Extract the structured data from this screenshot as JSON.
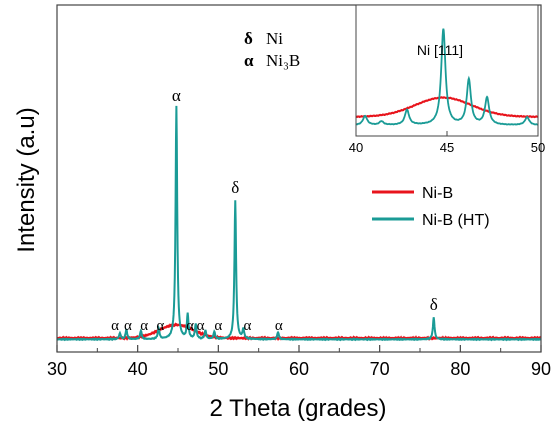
{
  "chart_data": [
    {
      "type": "line",
      "xlabel": "2 Theta (grades)",
      "ylabel": "Intensity (a.u)",
      "xlim": [
        30,
        90
      ],
      "ylim": [
        0,
        1.05
      ],
      "x_ticks": [
        "30",
        "40",
        "50",
        "60",
        "70",
        "80",
        "90"
      ],
      "legend_position": "center-right",
      "phase_key": [
        {
          "symbol": "δ",
          "label": "Ni"
        },
        {
          "symbol": "α",
          "label": "Ni₃B"
        }
      ],
      "series": [
        {
          "name": "Ni-B",
          "color": "#e8141c",
          "baseline": 0.02,
          "broad_peak": {
            "center": 44.8,
            "height": 0.055,
            "width": 3.0
          }
        },
        {
          "name": "Ni-B (HT)",
          "color": "#1a9b96",
          "baseline": 0.015,
          "peaks": [
            {
              "x": 37.8,
              "y": 0.025
            },
            {
              "x": 38.6,
              "y": 0.04
            },
            {
              "x": 40.4,
              "y": 0.035
            },
            {
              "x": 42.6,
              "y": 0.045
            },
            {
              "x": 44.8,
              "y": 0.96
            },
            {
              "x": 46.2,
              "y": 0.1
            },
            {
              "x": 47.2,
              "y": 0.06
            },
            {
              "x": 48.4,
              "y": 0.035
            },
            {
              "x": 49.5,
              "y": 0.03
            },
            {
              "x": 52.1,
              "y": 0.57
            },
            {
              "x": 53.1,
              "y": 0.04
            },
            {
              "x": 57.4,
              "y": 0.03
            },
            {
              "x": 76.7,
              "y": 0.09
            }
          ]
        }
      ],
      "annotations": [
        {
          "text": "α",
          "x": 44.8
        },
        {
          "text": "δ",
          "x": 52.1
        },
        {
          "text": "δ",
          "x": 76.7
        },
        {
          "text": "α",
          "x": 37.2
        },
        {
          "text": "α",
          "x": 38.8
        },
        {
          "text": "α",
          "x": 40.8
        },
        {
          "text": "α",
          "x": 42.8
        },
        {
          "text": "α",
          "x": 46.5
        },
        {
          "text": "α",
          "x": 47.8
        },
        {
          "text": "α",
          "x": 50.0
        },
        {
          "text": "α",
          "x": 53.6
        },
        {
          "text": "α",
          "x": 57.5
        }
      ]
    },
    {
      "type": "line",
      "title": "Ni [111]",
      "xlim": [
        40,
        50
      ],
      "x_ticks": [
        "40",
        "45",
        "50"
      ],
      "series": [
        {
          "name": "Ni-B",
          "color": "#e8141c",
          "broad_peak": {
            "center": 44.8,
            "height": 0.32,
            "width": 2.2
          },
          "baseline": 0.22
        },
        {
          "name": "Ni-B (HT)",
          "color": "#1a9b96",
          "baseline": 0.08,
          "peaks": [
            {
              "x": 40.5,
              "y": 0.15
            },
            {
              "x": 41.4,
              "y": 0.06
            },
            {
              "x": 42.8,
              "y": 0.25
            },
            {
              "x": 44.8,
              "y": 1.6
            },
            {
              "x": 46.2,
              "y": 0.75
            },
            {
              "x": 47.2,
              "y": 0.45
            },
            {
              "x": 49.4,
              "y": 0.13
            }
          ]
        }
      ]
    }
  ]
}
